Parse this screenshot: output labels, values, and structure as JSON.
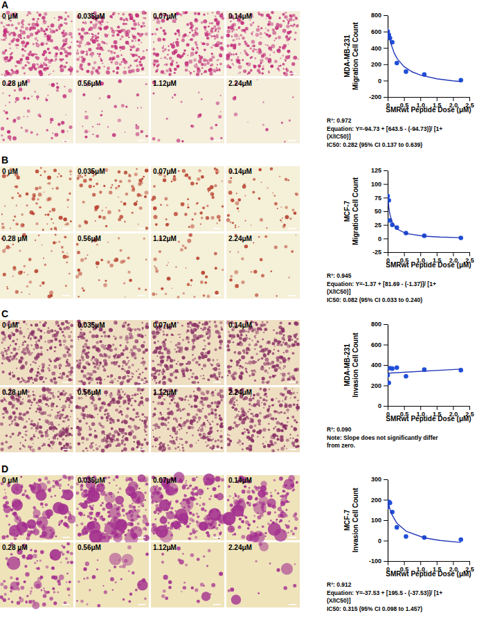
{
  "chart_data": [
    {
      "panel": "A",
      "type": "scatter",
      "image_labels": [
        "0 μM",
        "0.035μM",
        "0.07μM",
        "0.14μM",
        "0.28 μM",
        "0.56μM",
        "1.12μM",
        "2.24μM"
      ],
      "xlabel": "SMRwt Peptide Dose (μM)",
      "ylabel": [
        "MDA-MB-231",
        "Migration Cell Count"
      ],
      "xlim": [
        0,
        2.5
      ],
      "ylim": [
        -200,
        800
      ],
      "xticks": [
        0,
        0.5,
        {
          "value": 1,
          "label": "1.0"
        },
        1.5,
        {
          "value": 2,
          "label": "2.0"
        },
        2.5
      ],
      "yticks": [
        -200,
        0,
        200,
        400,
        600,
        800
      ],
      "series": [
        {
          "type": "scatter",
          "marker": "circle",
          "color": "#1f4fd8",
          "x": [
            0,
            0.035,
            0.07,
            0.14,
            0.28,
            0.56,
            1.12,
            2.24
          ],
          "values": [
            600,
            560,
            520,
            470,
            215,
            110,
            75,
            5
          ]
        },
        {
          "type": "line",
          "line_style": "solid",
          "color": "#2338b8",
          "x": [
            0,
            0.05,
            0.1,
            0.2,
            0.3,
            0.5,
            0.75,
            1,
            1.5,
            2,
            2.24
          ],
          "values": [
            643,
            532,
            450,
            337,
            263,
            172,
            107,
            68,
            22,
            -3,
            -12
          ]
        }
      ],
      "annotations": [
        "R²: 0.972",
        "Equation: Y=-94.73 + [643.5 - (-94.73)]/ [1+",
        "(X/IC50)]",
        "IC50: 0.282 (95% CI 0.137 to 0.639)"
      ]
    },
    {
      "panel": "B",
      "type": "scatter",
      "image_labels": [
        "0 μM",
        "0.035μM",
        "0.07μM",
        "0.14μM",
        "0.28 μM",
        "0.56μM",
        "1.12μM",
        "2.24μM"
      ],
      "xlabel": "SMRwt Peptide Dose (μM)",
      "ylabel": [
        "MCF-7",
        "Migration Cell Count"
      ],
      "xlim": [
        0,
        2.5
      ],
      "ylim": [
        -25,
        125
      ],
      "xticks": [
        0,
        0.5,
        {
          "value": 1,
          "label": "1.0"
        },
        1.5,
        {
          "value": 2,
          "label": "2.0"
        },
        2.5
      ],
      "yticks": [
        -25,
        0,
        25,
        50,
        75,
        100,
        125
      ],
      "series": [
        {
          "type": "scatter",
          "marker": "circle",
          "color": "#1f4fd8",
          "x": [
            0,
            0.035,
            0.07,
            0.14,
            0.28,
            0.56,
            1.12,
            2.24
          ],
          "values": [
            78,
            70,
            33,
            25,
            20,
            10,
            5,
            1
          ]
        },
        {
          "type": "line",
          "line_style": "solid",
          "color": "#2338b8",
          "x": [
            0,
            0.035,
            0.07,
            0.14,
            0.28,
            0.56,
            1.12,
            1.6,
            2.24
          ],
          "values": [
            81.7,
            56.8,
            43.4,
            29.3,
            17.5,
            9.2,
            4.3,
            2.7,
            1.6
          ]
        }
      ],
      "annotations": [
        "R²: 0.945",
        "Equation: Y=-1.37 + [81.69 - (-1.37)]/ [1+",
        "(X/IC50)]",
        "IC50: 0.082 (95% CI 0.033 to 0.240)"
      ]
    },
    {
      "panel": "C",
      "type": "scatter",
      "image_labels": [
        "0 μM",
        "0.035μM",
        "0.07μM",
        "0.14μM",
        "0.28 μM",
        "0.56μM",
        "1.12μM",
        "2.24μM"
      ],
      "xlabel": "SMRwt Peptide Dose (μM)",
      "ylabel": [
        "MDA-MB-231",
        "Invasion Cell Count"
      ],
      "xlim": [
        0,
        2.5
      ],
      "ylim": [
        0,
        800
      ],
      "xticks": [
        0,
        0.5,
        {
          "value": 1,
          "label": "1.0"
        },
        1.5,
        {
          "value": 2,
          "label": "2.0"
        },
        2.5
      ],
      "yticks": [
        0,
        200,
        400,
        600,
        800
      ],
      "series": [
        {
          "type": "scatter",
          "marker": "circle",
          "color": "#1f4fd8",
          "x": [
            0,
            0.035,
            0.07,
            0.14,
            0.28,
            0.56,
            1.12,
            2.24
          ],
          "values": [
            300,
            225,
            370,
            365,
            375,
            290,
            355,
            350
          ]
        },
        {
          "type": "line",
          "line_style": "solid",
          "color": "#2338b8",
          "x": [
            0,
            2.24
          ],
          "values": [
            320,
            360
          ]
        }
      ],
      "annotations": [
        "R²: 0.090",
        "Note: Slope does not significantly differ",
        "from zero."
      ]
    },
    {
      "panel": "D",
      "type": "scatter",
      "image_labels": [
        "0 μM",
        "0.035μM",
        "0.07μM",
        "0.14μM",
        "0.28 μM",
        "0.56μM",
        "1.12μM",
        "2.24μM"
      ],
      "xlabel": "SMRwt Peptide Dose (μM)",
      "ylabel": [
        "MCF-7",
        "Invasion Cell Count"
      ],
      "xlim": [
        0,
        2.5
      ],
      "ylim": [
        -100,
        300
      ],
      "xticks": [
        0,
        0.5,
        {
          "value": 1,
          "label": "1.0"
        },
        1.5,
        {
          "value": 2,
          "label": "2.0"
        },
        2.5
      ],
      "yticks": [
        -100,
        0,
        100,
        200,
        300
      ],
      "series": [
        {
          "type": "scatter",
          "marker": "circle",
          "color": "#1f4fd8",
          "x": [
            0,
            0.035,
            0.07,
            0.14,
            0.28,
            0.56,
            1.12,
            2.24
          ],
          "values": [
            165,
            190,
            185,
            140,
            65,
            20,
            15,
            5
          ]
        },
        {
          "type": "line",
          "line_style": "solid",
          "color": "#2338b8",
          "x": [
            0,
            0.035,
            0.07,
            0.14,
            0.28,
            0.56,
            1.12,
            1.6,
            2.24
          ],
          "values": [
            195.5,
            172.2,
            153.2,
            123.8,
            85.8,
            46.4,
            13.6,
            0.8,
            -8.8
          ]
        }
      ],
      "annotations": [
        "R²: 0.912",
        "Equation: Y=-37.53 + [195.5 - (-37.53)]/ [1+",
        "(X/IC50)]",
        "IC50: 0.315 (95% CI 0.098 to 1.457)"
      ]
    }
  ]
}
